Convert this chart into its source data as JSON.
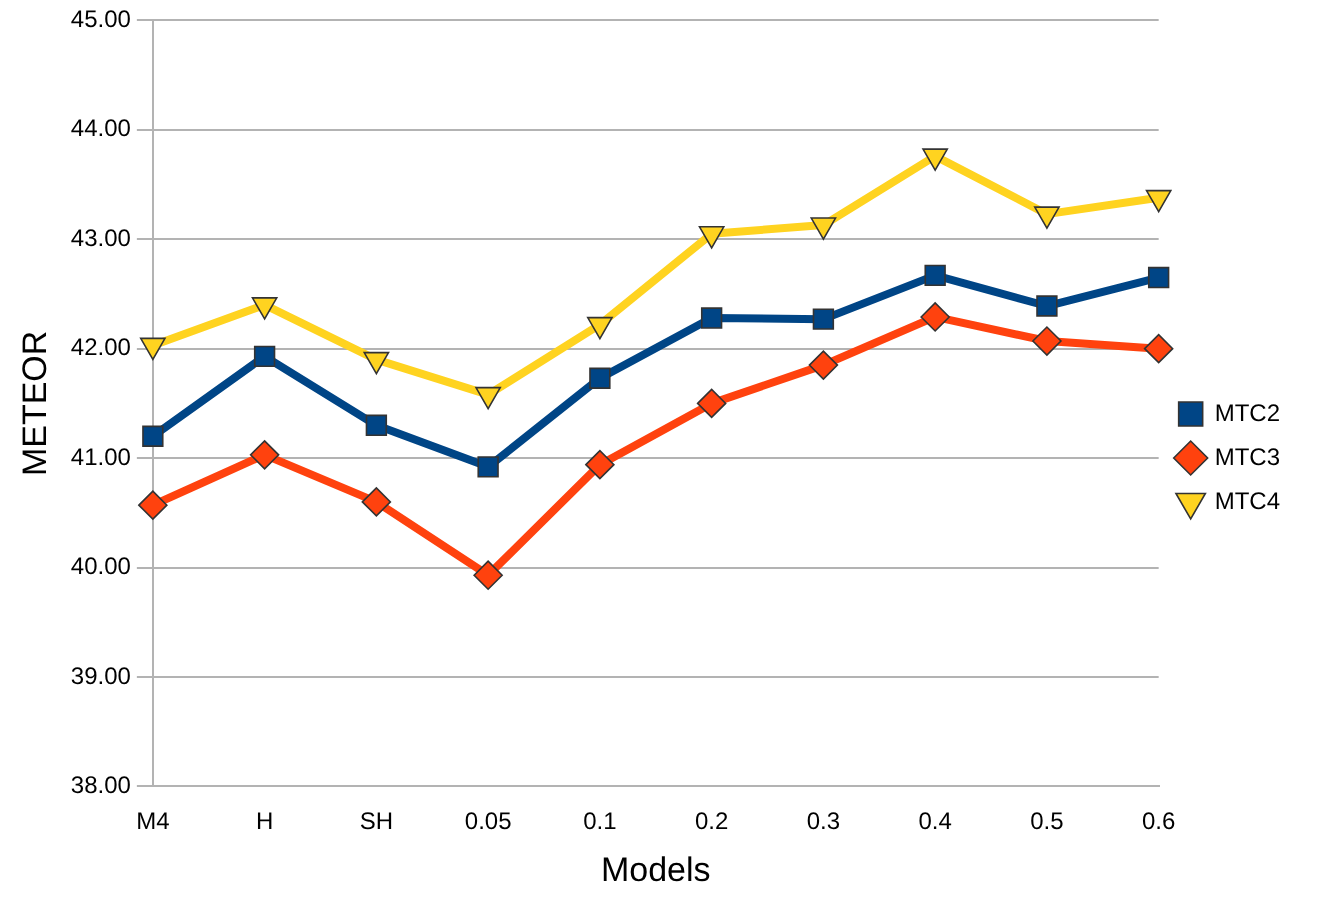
{
  "chart_data": {
    "type": "line",
    "xlabel": "Models",
    "ylabel": "METEOR",
    "categories": [
      "M4",
      "H",
      "SH",
      "0.05",
      "0.1",
      "0.2",
      "0.3",
      "0.4",
      "0.5",
      "0.6"
    ],
    "series": [
      {
        "name": "MTC2",
        "color": "#004586",
        "marker": "square",
        "values": [
          41.2,
          41.93,
          41.3,
          40.92,
          41.73,
          42.28,
          42.27,
          42.67,
          42.39,
          42.65
        ]
      },
      {
        "name": "MTC3",
        "color": "#ff420e",
        "marker": "diamond",
        "values": [
          40.57,
          41.03,
          40.6,
          39.93,
          40.94,
          41.5,
          41.85,
          42.29,
          42.07,
          42.0
        ]
      },
      {
        "name": "MTC4",
        "color": "#ffd320",
        "marker": "triangle",
        "values": [
          42.03,
          42.4,
          41.9,
          41.58,
          42.22,
          43.05,
          43.13,
          43.76,
          43.23,
          43.38
        ]
      }
    ],
    "ylim": [
      38,
      45
    ],
    "yticks": [
      {
        "value": 38,
        "label": "38.00"
      },
      {
        "value": 39,
        "label": "39.00"
      },
      {
        "value": 40,
        "label": "40.00"
      },
      {
        "value": 41,
        "label": "41.00"
      },
      {
        "value": 42,
        "label": "42.00"
      },
      {
        "value": 43,
        "label": "43.00"
      },
      {
        "value": 44,
        "label": "44.00"
      },
      {
        "value": 45,
        "label": "45.00"
      }
    ],
    "grid": "y",
    "legend": "right",
    "line_style": "solid"
  }
}
